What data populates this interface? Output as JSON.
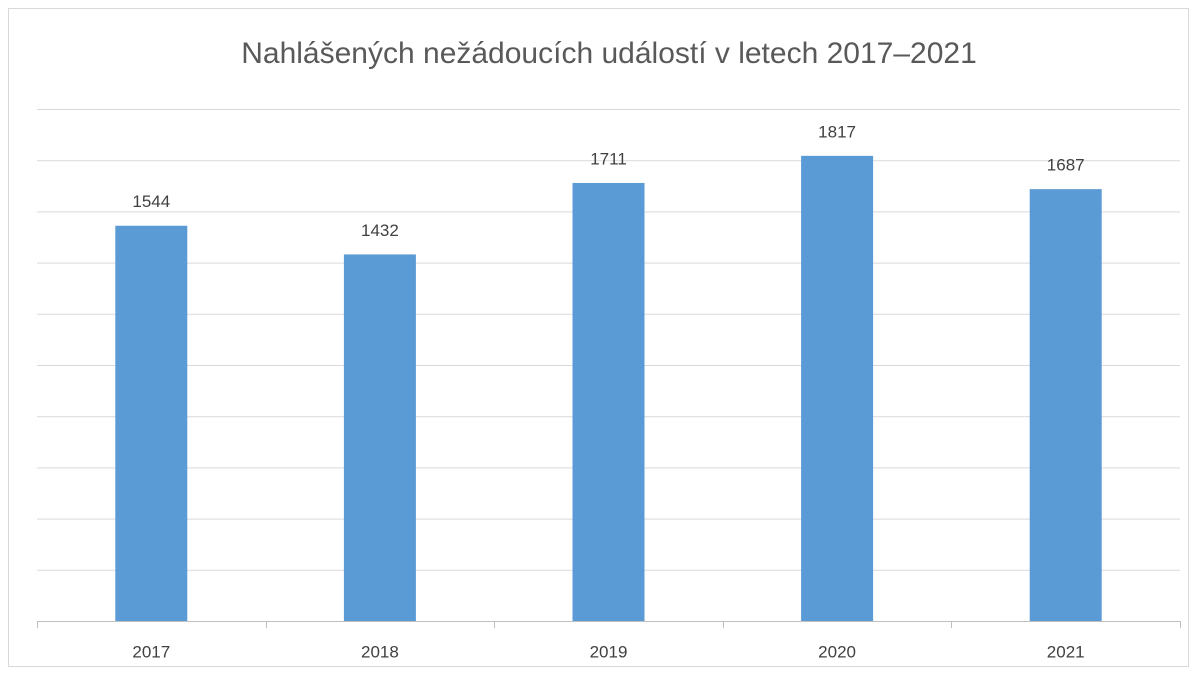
{
  "chart_data": {
    "type": "bar",
    "title": "Nahlášených nežádoucích událostí v letech 2017–2021",
    "categories": [
      "2017",
      "2018",
      "2019",
      "2020",
      "2021"
    ],
    "values": [
      1544,
      1432,
      1711,
      1817,
      1687
    ],
    "color": "#5b9bd5",
    "ylim": [
      0,
      2000
    ],
    "yticks": [
      0,
      200,
      400,
      600,
      800,
      1000,
      1200,
      1400,
      1600,
      1800,
      2000
    ],
    "grid": true
  }
}
